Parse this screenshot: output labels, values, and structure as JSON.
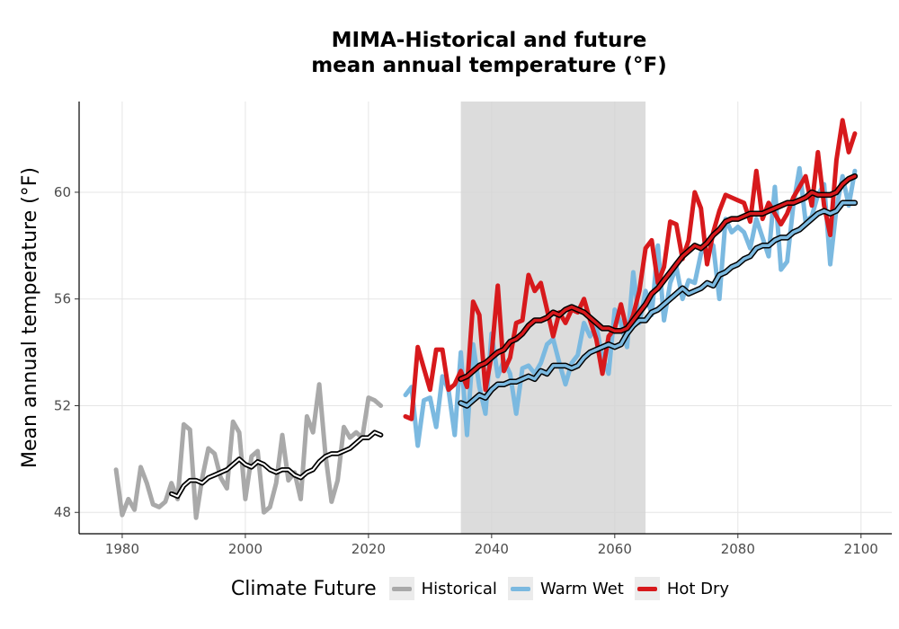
{
  "chart_data": {
    "type": "line",
    "title": [
      "MIMA-Historical and future",
      "mean annual temperature (°F)"
    ],
    "xlabel": "",
    "ylabel": "Mean annual temperature (°F)",
    "xlim": [
      1973,
      2105
    ],
    "ylim": [
      47.2,
      63.4
    ],
    "x_ticks": [
      1980,
      2000,
      2020,
      2040,
      2060,
      2080,
      2100
    ],
    "y_ticks": [
      48,
      52,
      56,
      60
    ],
    "grid": true,
    "shaded_period": [
      2035,
      2065
    ],
    "legend_title": "Climate Future",
    "legend_position": "bottom",
    "series": [
      {
        "name": "Historical",
        "color": "#a9a9a9",
        "x": [
          1979,
          1980,
          1981,
          1982,
          1983,
          1984,
          1985,
          1986,
          1987,
          1988,
          1989,
          1990,
          1991,
          1992,
          1993,
          1994,
          1995,
          1996,
          1997,
          1998,
          1999,
          2000,
          2001,
          2002,
          2003,
          2004,
          2005,
          2006,
          2007,
          2008,
          2009,
          2010,
          2011,
          2012,
          2013,
          2014,
          2015,
          2016,
          2017,
          2018,
          2019,
          2020,
          2021,
          2022
        ],
        "y": [
          49.6,
          47.9,
          48.5,
          48.1,
          49.7,
          49.1,
          48.3,
          48.2,
          48.4,
          49.1,
          48.5,
          51.3,
          51.1,
          47.8,
          49.3,
          50.4,
          50.2,
          49.3,
          48.9,
          51.4,
          51.0,
          48.5,
          50.1,
          50.3,
          48.0,
          48.2,
          49.1,
          50.9,
          49.2,
          49.5,
          48.5,
          51.6,
          51.0,
          52.8,
          50.2,
          48.4,
          49.2,
          51.2,
          50.8,
          51.0,
          50.8,
          52.3,
          52.2,
          52.0
        ]
      },
      {
        "name": "Historical smoothed",
        "color": "#000000",
        "x": [
          1988,
          1989,
          1990,
          1991,
          1992,
          1993,
          1994,
          1995,
          1996,
          1997,
          1998,
          1999,
          2000,
          2001,
          2002,
          2003,
          2004,
          2005,
          2006,
          2007,
          2008,
          2009,
          2010,
          2011,
          2012,
          2013,
          2014,
          2015,
          2016,
          2017,
          2018,
          2019,
          2020,
          2021,
          2022
        ],
        "y": [
          48.7,
          48.6,
          49.0,
          49.2,
          49.2,
          49.1,
          49.3,
          49.4,
          49.5,
          49.6,
          49.8,
          50.0,
          49.8,
          49.7,
          49.9,
          49.8,
          49.6,
          49.5,
          49.6,
          49.6,
          49.4,
          49.3,
          49.5,
          49.6,
          49.9,
          50.1,
          50.2,
          50.2,
          50.3,
          50.4,
          50.6,
          50.8,
          50.8,
          51.0,
          50.9
        ]
      },
      {
        "name": "Warm Wet",
        "color": "#7bb9e0",
        "x": [
          2026,
          2027,
          2028,
          2029,
          2030,
          2031,
          2032,
          2033,
          2034,
          2035,
          2036,
          2037,
          2038,
          2039,
          2040,
          2041,
          2042,
          2043,
          2044,
          2045,
          2046,
          2047,
          2048,
          2049,
          2050,
          2051,
          2052,
          2053,
          2054,
          2055,
          2056,
          2057,
          2058,
          2059,
          2060,
          2061,
          2062,
          2063,
          2064,
          2065,
          2066,
          2067,
          2068,
          2069,
          2070,
          2071,
          2072,
          2073,
          2074,
          2075,
          2076,
          2077,
          2078,
          2079,
          2080,
          2081,
          2082,
          2083,
          2084,
          2085,
          2086,
          2087,
          2088,
          2089,
          2090,
          2091,
          2092,
          2093,
          2094,
          2095,
          2096,
          2097,
          2098,
          2099
        ],
        "y": [
          52.4,
          52.7,
          50.5,
          52.2,
          52.3,
          51.2,
          53.1,
          52.6,
          50.9,
          54.0,
          50.9,
          54.3,
          52.7,
          51.7,
          54.7,
          53.1,
          53.7,
          53.2,
          51.7,
          53.4,
          53.5,
          53.2,
          53.6,
          54.3,
          54.5,
          53.6,
          52.8,
          53.6,
          53.9,
          55.1,
          54.6,
          55.0,
          53.8,
          53.2,
          55.6,
          55.1,
          54.2,
          57.0,
          55.1,
          56.3,
          55.4,
          58.0,
          55.2,
          56.6,
          57.2,
          56.0,
          56.7,
          56.6,
          57.7,
          58.2,
          58.0,
          56.0,
          59.0,
          58.5,
          58.7,
          58.5,
          57.9,
          59.0,
          58.3,
          57.6,
          60.2,
          57.1,
          57.4,
          59.5,
          60.9,
          58.9,
          59.1,
          59.9,
          60.3,
          57.3,
          59.4,
          60.6,
          59.5,
          60.8
        ]
      },
      {
        "name": "Hot Dry",
        "color": "#d7191c",
        "x": [
          2026,
          2027,
          2028,
          2029,
          2030,
          2031,
          2032,
          2033,
          2034,
          2035,
          2036,
          2037,
          2038,
          2039,
          2040,
          2041,
          2042,
          2043,
          2044,
          2045,
          2046,
          2047,
          2048,
          2049,
          2050,
          2051,
          2052,
          2053,
          2054,
          2055,
          2056,
          2057,
          2058,
          2059,
          2060,
          2061,
          2062,
          2063,
          2064,
          2065,
          2066,
          2067,
          2068,
          2069,
          2070,
          2071,
          2072,
          2073,
          2074,
          2075,
          2076,
          2077,
          2078,
          2079,
          2080,
          2081,
          2082,
          2083,
          2084,
          2085,
          2086,
          2087,
          2088,
          2089,
          2090,
          2091,
          2092,
          2093,
          2094,
          2095,
          2096,
          2097,
          2098,
          2099
        ],
        "y": [
          51.6,
          51.5,
          54.2,
          53.4,
          52.6,
          54.1,
          54.1,
          52.6,
          52.8,
          53.3,
          52.7,
          55.9,
          55.4,
          52.6,
          53.9,
          56.5,
          53.3,
          53.8,
          55.1,
          55.2,
          56.9,
          56.3,
          56.6,
          55.6,
          54.6,
          55.5,
          55.1,
          55.6,
          55.5,
          56.0,
          55.2,
          54.5,
          53.2,
          54.6,
          54.9,
          55.8,
          54.8,
          55.4,
          56.3,
          57.9,
          58.2,
          56.6,
          57.2,
          58.9,
          58.8,
          57.5,
          58.2,
          60.0,
          59.4,
          57.3,
          58.5,
          59.3,
          59.9,
          59.8,
          59.7,
          59.6,
          58.9,
          60.8,
          59.0,
          59.6,
          59.2,
          58.8,
          59.2,
          59.8,
          60.2,
          60.6,
          59.5,
          61.5,
          59.5,
          58.4,
          61.2,
          62.7,
          61.5,
          62.2
        ]
      },
      {
        "name": "Warm Wet smoothed",
        "color": "#7bb9e0",
        "x": [
          2035,
          2036,
          2037,
          2038,
          2039,
          2040,
          2041,
          2042,
          2043,
          2044,
          2045,
          2046,
          2047,
          2048,
          2049,
          2050,
          2051,
          2052,
          2053,
          2054,
          2055,
          2056,
          2057,
          2058,
          2059,
          2060,
          2061,
          2062,
          2063,
          2064,
          2065,
          2066,
          2067,
          2068,
          2069,
          2070,
          2071,
          2072,
          2073,
          2074,
          2075,
          2076,
          2077,
          2078,
          2079,
          2080,
          2081,
          2082,
          2083,
          2084,
          2085,
          2086,
          2087,
          2088,
          2089,
          2090,
          2091,
          2092,
          2093,
          2094,
          2095,
          2096,
          2097,
          2098,
          2099
        ],
        "y": [
          52.1,
          52.0,
          52.2,
          52.4,
          52.3,
          52.6,
          52.8,
          52.8,
          52.9,
          52.9,
          53.0,
          53.1,
          53.0,
          53.3,
          53.2,
          53.5,
          53.5,
          53.5,
          53.4,
          53.5,
          53.8,
          54.0,
          54.1,
          54.2,
          54.3,
          54.2,
          54.3,
          54.7,
          55.0,
          55.2,
          55.2,
          55.5,
          55.6,
          55.8,
          56.0,
          56.2,
          56.4,
          56.2,
          56.3,
          56.4,
          56.6,
          56.5,
          56.9,
          57.0,
          57.2,
          57.3,
          57.5,
          57.6,
          57.9,
          58.0,
          58.0,
          58.2,
          58.3,
          58.3,
          58.5,
          58.6,
          58.8,
          59.0,
          59.2,
          59.3,
          59.2,
          59.3,
          59.6,
          59.6,
          59.6
        ]
      },
      {
        "name": "Hot Dry smoothed",
        "color": "#d7191c",
        "x": [
          2035,
          2036,
          2037,
          2038,
          2039,
          2040,
          2041,
          2042,
          2043,
          2044,
          2045,
          2046,
          2047,
          2048,
          2049,
          2050,
          2051,
          2052,
          2053,
          2054,
          2055,
          2056,
          2057,
          2058,
          2059,
          2060,
          2061,
          2062,
          2063,
          2064,
          2065,
          2066,
          2067,
          2068,
          2069,
          2070,
          2071,
          2072,
          2073,
          2074,
          2075,
          2076,
          2077,
          2078,
          2079,
          2080,
          2081,
          2082,
          2083,
          2084,
          2085,
          2086,
          2087,
          2088,
          2089,
          2090,
          2091,
          2092,
          2093,
          2094,
          2095,
          2096,
          2097,
          2098,
          2099
        ],
        "y": [
          53.0,
          53.1,
          53.3,
          53.5,
          53.6,
          53.8,
          54.0,
          54.1,
          54.4,
          54.5,
          54.7,
          55.0,
          55.2,
          55.2,
          55.3,
          55.5,
          55.4,
          55.6,
          55.7,
          55.6,
          55.5,
          55.3,
          55.1,
          54.9,
          54.9,
          54.8,
          54.8,
          54.9,
          55.2,
          55.5,
          55.8,
          56.2,
          56.4,
          56.7,
          57.0,
          57.3,
          57.6,
          57.8,
          58.0,
          57.9,
          58.1,
          58.4,
          58.6,
          58.9,
          59.0,
          59.0,
          59.1,
          59.2,
          59.2,
          59.2,
          59.3,
          59.4,
          59.5,
          59.6,
          59.6,
          59.7,
          59.8,
          60.0,
          59.9,
          59.9,
          59.9,
          60.0,
          60.3,
          60.5,
          60.6
        ]
      }
    ]
  },
  "legend": {
    "title": "Climate Future",
    "items": [
      {
        "label": "Historical",
        "color": "#a9a9a9"
      },
      {
        "label": "Warm Wet",
        "color": "#7bb9e0"
      },
      {
        "label": "Hot Dry",
        "color": "#d7191c"
      }
    ]
  }
}
